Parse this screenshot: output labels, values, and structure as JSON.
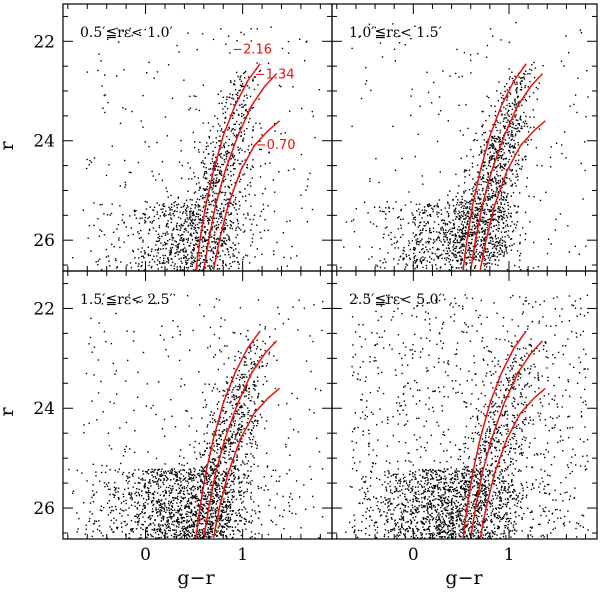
{
  "chart_data": {
    "type": "scatter",
    "xlabel": "g−r",
    "ylabel": "r",
    "xlim": [
      -0.85,
      1.92
    ],
    "ylim": [
      26.62,
      21.25
    ],
    "x_ticks": [
      "0",
      "1"
    ],
    "y_ticks": [
      "22",
      "24",
      "26"
    ],
    "colors": {
      "points": "#000000",
      "isochrone": "#e8120f",
      "frame": "#000000"
    },
    "isochrones": [
      {
        "label": "−2.16",
        "points": [
          [
            0.52,
            26.6
          ],
          [
            0.56,
            26.0
          ],
          [
            0.62,
            25.3
          ],
          [
            0.7,
            24.6
          ],
          [
            0.8,
            23.9
          ],
          [
            0.92,
            23.3
          ],
          [
            1.05,
            22.8
          ],
          [
            1.18,
            22.45
          ]
        ]
      },
      {
        "label": "−1.34",
        "points": [
          [
            0.6,
            26.6
          ],
          [
            0.65,
            26.0
          ],
          [
            0.72,
            25.3
          ],
          [
            0.82,
            24.6
          ],
          [
            0.95,
            23.9
          ],
          [
            1.09,
            23.3
          ],
          [
            1.23,
            22.9
          ],
          [
            1.35,
            22.65
          ]
        ]
      },
      {
        "label": "−0.70",
        "points": [
          [
            0.7,
            26.6
          ],
          [
            0.76,
            26.0
          ],
          [
            0.85,
            25.3
          ],
          [
            0.98,
            24.6
          ],
          [
            1.12,
            24.1
          ],
          [
            1.26,
            23.8
          ],
          [
            1.38,
            23.6
          ]
        ]
      }
    ],
    "panels": [
      {
        "name": "panel-1",
        "label": "0.5′≦rε< 1.0′",
        "show_iso_labels": true,
        "n_points": 1500,
        "rgb_mean_c": 0.7,
        "rgb_sd": 0.14,
        "r_range": [
          22.5,
          26.6
        ],
        "faint_frac": 0.25,
        "field_frac": 0.18
      },
      {
        "name": "panel-2",
        "label": "1.0′≦rε< 1.5′",
        "show_iso_labels": false,
        "n_points": 1800,
        "rgb_mean_c": 0.78,
        "rgb_sd": 0.13,
        "r_range": [
          22.4,
          26.4
        ],
        "faint_frac": 0.28,
        "field_frac": 0.1
      },
      {
        "name": "panel-3",
        "label": "1.5′≦rε< 2.5′",
        "show_iso_labels": false,
        "n_points": 2300,
        "rgb_mean_c": 0.78,
        "rgb_sd": 0.13,
        "r_range": [
          22.5,
          26.6
        ],
        "faint_frac": 0.42,
        "field_frac": 0.14
      },
      {
        "name": "panel-4",
        "label": "2.5′≦rε< 5.0′",
        "show_iso_labels": false,
        "n_points": 2600,
        "rgb_mean_c": 0.82,
        "rgb_sd": 0.16,
        "r_range": [
          22.5,
          26.6
        ],
        "faint_frac": 0.4,
        "field_frac": 0.35
      }
    ]
  }
}
